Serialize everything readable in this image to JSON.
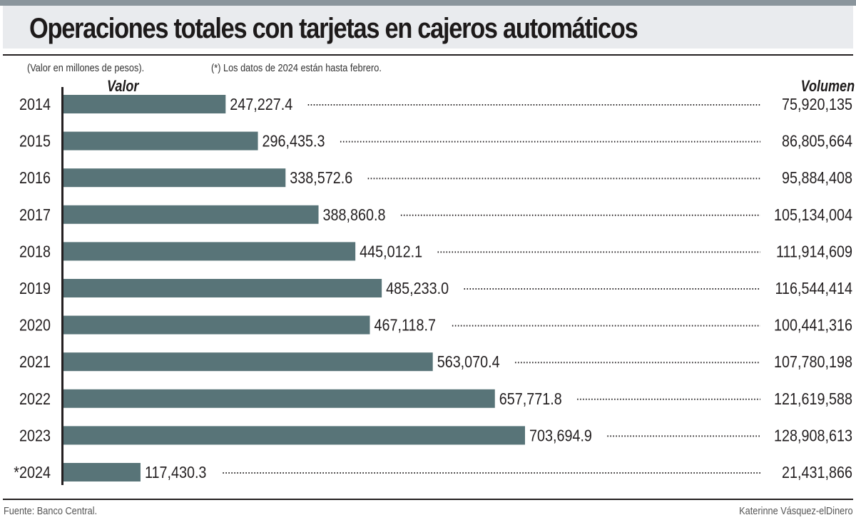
{
  "title": "Operaciones totales con tarjetas en cajeros automáticos",
  "notes": {
    "units": "(Valor en millones de pesos).",
    "footnote": "(*) Los datos de 2024 están hasta febrero."
  },
  "footer": {
    "source": "Fuente: Banco Central.",
    "credit": "Katerinne Vásquez-elDinero"
  },
  "colors": {
    "bar": "#587478",
    "header_band": "#e9ebee",
    "top_strip": "#8a959c",
    "text": "#231f20"
  },
  "chart_data": {
    "type": "bar",
    "orientation": "horizontal",
    "title": "Operaciones totales con tarjetas en cajeros automáticos",
    "categories": [
      "2014",
      "2015",
      "2016",
      "2017",
      "2018",
      "2019",
      "2020",
      "2021",
      "2022",
      "2023",
      "*2024"
    ],
    "series": [
      {
        "name": "Valor",
        "unit": "millones de pesos",
        "values": [
          247227.4,
          296435.3,
          338572.6,
          388860.8,
          445012.1,
          485233.0,
          467118.7,
          563070.4,
          657771.8,
          703694.9,
          117430.3
        ],
        "labels": [
          "247,227.4",
          "296,435.3",
          "338,572.6",
          "388,860.8",
          "445,012.1",
          "485,233.0",
          "467,118.7",
          "563,070.4",
          "657,771.8",
          "703,694.9",
          "117,430.3"
        ]
      },
      {
        "name": "Volumen",
        "values": [
          75920135,
          86805664,
          95884408,
          105134004,
          111914609,
          116544414,
          100441316,
          107780198,
          121619588,
          128908613,
          21431866
        ],
        "labels": [
          "75,920,135",
          "86,805,664",
          "95,884,408",
          "105,134,004",
          "111,914,609",
          "116,544,414",
          "100,441,316",
          "107,780,198",
          "121,619,588",
          "128,908,613",
          "21,431,866"
        ]
      }
    ],
    "column_headers": {
      "value": "Valor",
      "volume": "Volumen"
    },
    "xlim": [
      0,
      800000
    ],
    "grid": false,
    "legend": "none"
  }
}
